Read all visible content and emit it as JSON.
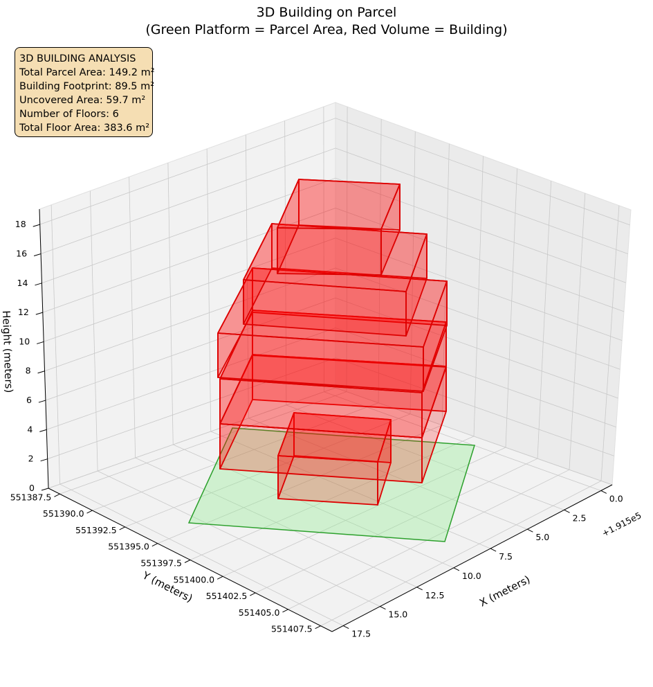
{
  "chart_data": {
    "type": "3d-bar",
    "title_line1": "3D Building on Parcel",
    "title_line2": "(Green Platform = Parcel Area, Red Volume = Building)",
    "xlabel": "X (meters)",
    "ylabel": "Y (meters)",
    "zlabel": "Height (meters)",
    "x_offset_label": "+1.915e5",
    "x_ticks": [
      "0.0",
      "2.5",
      "5.0",
      "7.5",
      "10.0",
      "12.5",
      "15.0",
      "17.5"
    ],
    "y_ticks": [
      "551387.5",
      "551390.0",
      "551392.5",
      "551395.0",
      "551397.5",
      "551400.0",
      "551402.5",
      "551405.0",
      "551407.5"
    ],
    "z_ticks": [
      "0",
      "2",
      "4",
      "6",
      "8",
      "10",
      "12",
      "14",
      "16",
      "18"
    ],
    "annotation": {
      "heading": "3D BUILDING ANALYSIS",
      "lines": [
        "Total Parcel Area: 149.2 m²",
        "Building Footprint: 89.5 m²",
        "Uncovered Area: 59.7 m²",
        "Number of Floors: 6",
        "Total Floor Area: 383.6 m²"
      ]
    },
    "parcel": {
      "color": "#2ca02c",
      "fill": "#90ee90"
    },
    "building": {
      "edge_color": "#dd0000",
      "fill": "#ff0000"
    }
  }
}
